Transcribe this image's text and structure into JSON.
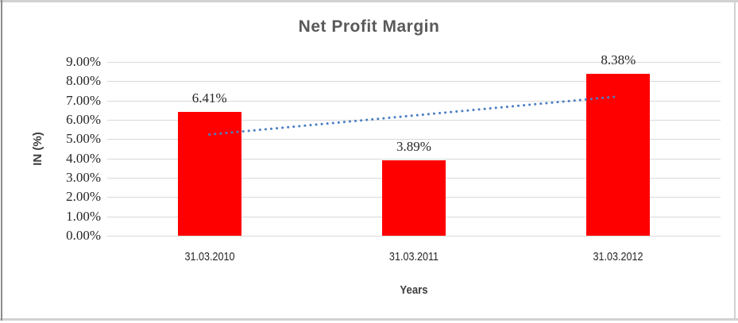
{
  "chart_data": {
    "type": "bar",
    "title": "Net Profit Margin",
    "xlabel": "Years",
    "ylabel": "IN (%)",
    "categories": [
      "31.03.2010",
      "31.03.2011",
      "31.03.2012"
    ],
    "values": [
      6.41,
      3.89,
      8.38
    ],
    "value_labels": [
      "6.41%",
      "3.89%",
      "8.38%"
    ],
    "ylim": [
      0,
      9
    ],
    "ytick_labels_top_to_bottom": [
      "9.00%",
      "8.00%",
      "7.00%",
      "6.00%",
      "5.00%",
      "4.00%",
      "3.00%",
      "2.00%",
      "1.00%",
      "0.00%"
    ],
    "grid": "horizontal",
    "legend": "none",
    "trendline": {
      "style": "dotted",
      "start_value": 5.24,
      "end_value": 7.21,
      "color": "#4c7fc4"
    },
    "colors": {
      "bar": "#ff0000",
      "gridline": "#d9d9d9",
      "title_text": "#595959",
      "axis_title_text": "#3f3f3f",
      "tick_text": "#262626"
    }
  }
}
